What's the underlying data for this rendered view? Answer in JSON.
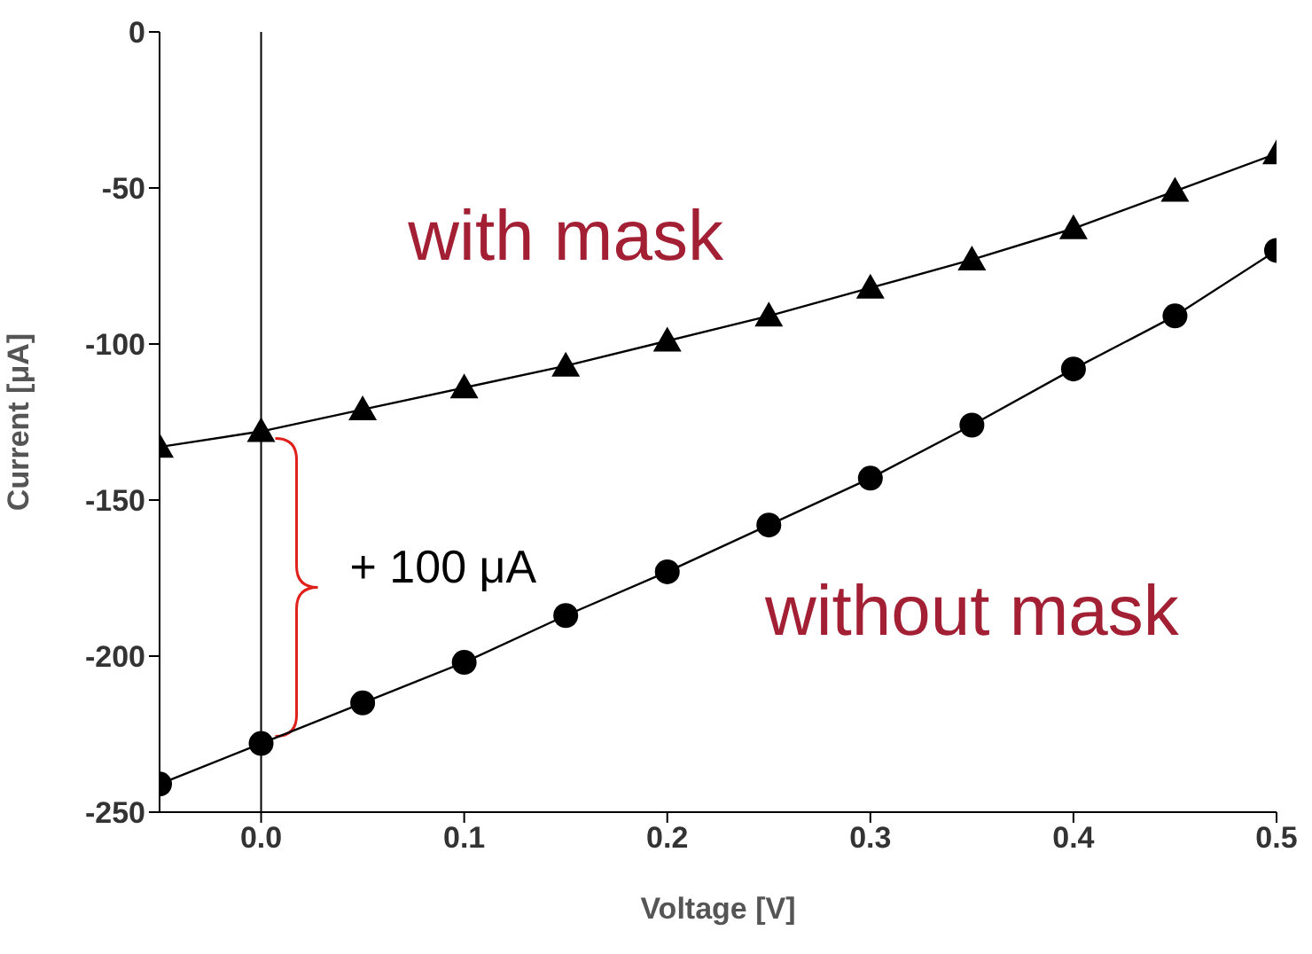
{
  "chart_data": {
    "type": "line",
    "xlabel": "Voltage [V]",
    "ylabel": "Current [μA]",
    "x": [
      -0.05,
      0,
      0.05,
      0.1,
      0.15,
      0.2,
      0.25,
      0.3,
      0.35,
      0.4,
      0.45,
      0.5
    ],
    "series": [
      {
        "name": "with mask",
        "color": "#000000",
        "marker": "triangle",
        "values": [
          -133,
          -128,
          -121,
          -114,
          -107,
          -99,
          -91,
          -82,
          -73,
          -63,
          -51,
          -39
        ]
      },
      {
        "name": "without mask",
        "color": "#000000",
        "marker": "circle",
        "values": [
          -241,
          -228,
          -215,
          -202,
          -187,
          -173,
          -158,
          -143,
          -126,
          -108,
          -91,
          -70
        ]
      }
    ],
    "xlim": [
      -0.05,
      0.5
    ],
    "xticks": [
      {
        "value": 0,
        "label": "0.0"
      },
      0.1,
      0.2,
      0.3,
      0.4,
      0.5
    ],
    "ylim": [
      -250,
      0
    ],
    "yticks": [
      -250,
      -200,
      -150,
      -100,
      -50,
      0
    ],
    "ref_lines": [
      {
        "axis": "x",
        "value": 0,
        "color": "#000000"
      }
    ],
    "annotations": [
      {
        "text": "+ 100 μA",
        "x": 0,
        "y": -178
      }
    ],
    "grid": false,
    "legend": false,
    "line_style": "solid"
  }
}
